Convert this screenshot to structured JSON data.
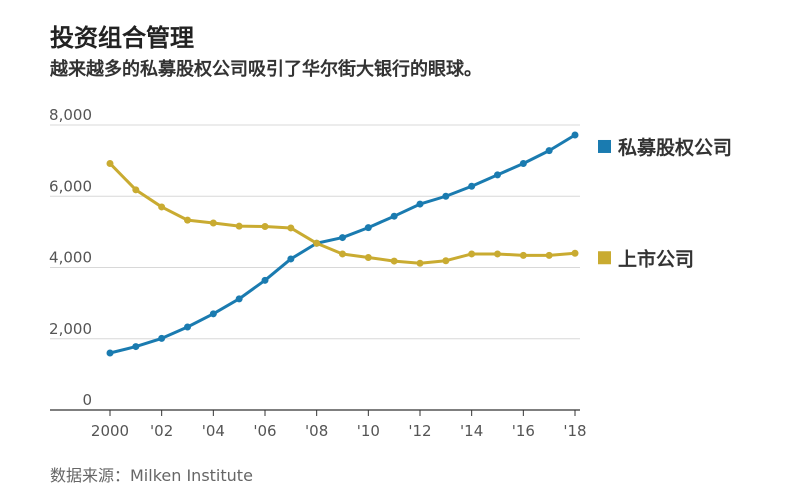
{
  "chart_data": {
    "type": "line",
    "title": "投资组合管理",
    "subtitle": "越来越多的私募股权公司吸引了华尔街大银行的眼球。",
    "source": "数据来源：Milken Institute",
    "x": [
      2000,
      2001,
      2002,
      2003,
      2004,
      2005,
      2006,
      2007,
      2008,
      2009,
      2010,
      2011,
      2012,
      2013,
      2014,
      2015,
      2016,
      2017,
      2018
    ],
    "x_tick_values": [
      2000,
      2002,
      2004,
      2006,
      2008,
      2010,
      2012,
      2014,
      2016,
      2018
    ],
    "x_tick_labels": [
      "2000",
      "'02",
      "'04",
      "'06",
      "'08",
      "'10",
      "'12",
      "'14",
      "'16",
      "'18"
    ],
    "y_tick_values": [
      0,
      2000,
      4000,
      6000,
      8000
    ],
    "y_tick_labels": [
      "0",
      "2,000",
      "4,000",
      "6,000",
      "8,000"
    ],
    "xlim": [
      2000,
      2018
    ],
    "ylim": [
      0,
      8000
    ],
    "grid": true,
    "legend_placement": "right",
    "series": [
      {
        "name": "私募股权公司",
        "color": "#1a7bb0",
        "values": [
          1600,
          1780,
          2010,
          2330,
          2700,
          3120,
          3640,
          4240,
          4680,
          4840,
          5120,
          5440,
          5780,
          6000,
          6280,
          6600,
          6920,
          7280,
          7720
        ]
      },
      {
        "name": "上市公司",
        "color": "#c9ab31",
        "values": [
          6920,
          6180,
          5700,
          5330,
          5250,
          5160,
          5150,
          5110,
          4680,
          4380,
          4280,
          4180,
          4120,
          4190,
          4380,
          4380,
          4340,
          4340,
          4400
        ]
      }
    ]
  }
}
